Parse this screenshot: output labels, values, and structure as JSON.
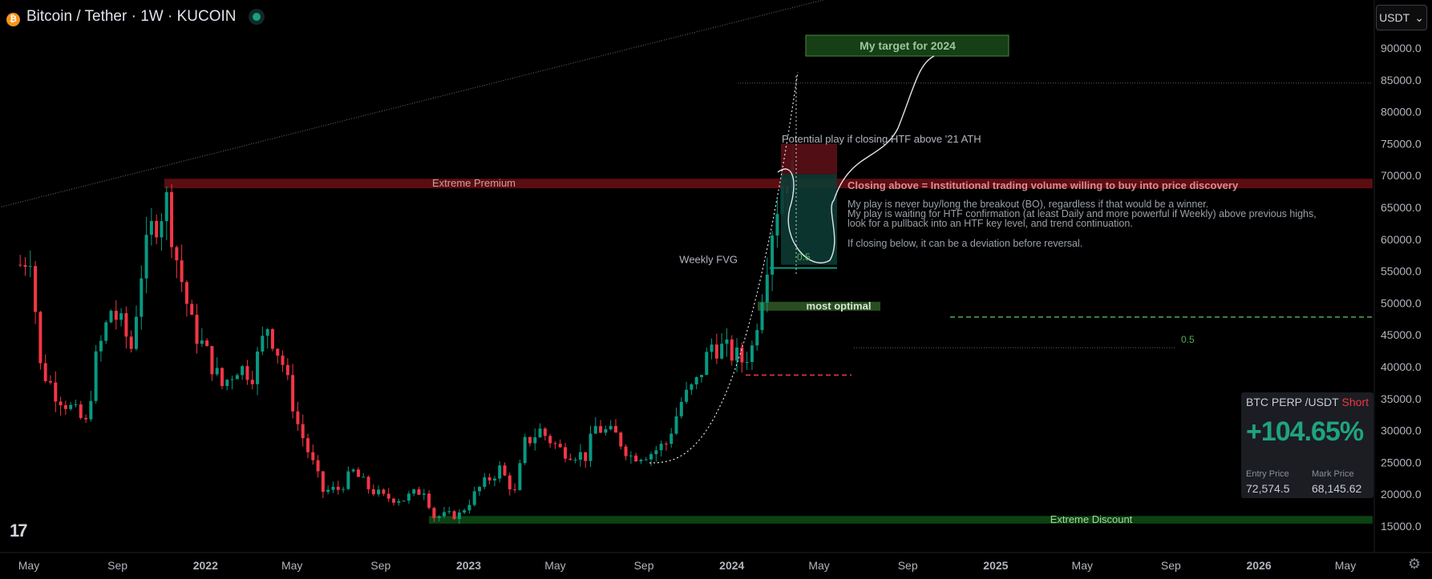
{
  "header": {
    "title": "Bitcoin / Tether · 1W · KUCOIN",
    "logo_letter": "₿"
  },
  "currency_selector": {
    "label": "USDT",
    "icon": "chevron-down-icon"
  },
  "colors": {
    "up": "#089981",
    "down": "#f23645",
    "background": "#000000",
    "accent": "#2962ff"
  },
  "position_card": {
    "symbol": "BTC PERP /USDT",
    "side": "Short",
    "pnl": "+104.65%",
    "entry_label": "Entry Price",
    "entry_value": "72,574.5",
    "mark_label": "Mark Price",
    "mark_value": "68,145.62"
  },
  "chart_data": {
    "type": "candlestick",
    "title": "Bitcoin / Tether · 1W · KUCOIN",
    "ylim": [
      12000,
      96000
    ],
    "y_ticks": [
      "90000.0",
      "85000.0",
      "80000.0",
      "75000.0",
      "70000.0",
      "65000.0",
      "60000.0",
      "55000.0",
      "50000.0",
      "45000.0",
      "40000.0",
      "35000.0",
      "30000.0",
      "25000.0",
      "20000.0",
      "15000.0"
    ],
    "x_ticks": [
      "May",
      "Sep",
      "2022",
      "May",
      "Sep",
      "2023",
      "May",
      "Sep",
      "2024",
      "May",
      "Sep",
      "2025",
      "May",
      "Sep",
      "2026",
      "May"
    ],
    "x_tick_dates": [
      "2021-05",
      "2021-09",
      "2022-01",
      "2022-05",
      "2022-09",
      "2023-01",
      "2023-05",
      "2023-09",
      "2024-01",
      "2024-05",
      "2024-09",
      "2025-01",
      "2025-05",
      "2025-09",
      "2026-01",
      "2026-05"
    ],
    "weekly_close_path": [
      [
        "2021-04-19",
        56000
      ],
      [
        "2021-05-03",
        58000
      ],
      [
        "2021-05-17",
        40000
      ],
      [
        "2021-06-07",
        36000
      ],
      [
        "2021-06-28",
        33500
      ],
      [
        "2021-07-19",
        31000
      ],
      [
        "2021-08-02",
        41000
      ],
      [
        "2021-08-23",
        49000
      ],
      [
        "2021-09-06",
        46500
      ],
      [
        "2021-09-20",
        43000
      ],
      [
        "2021-10-04",
        55000
      ],
      [
        "2021-10-18",
        61500
      ],
      [
        "2021-11-08",
        66000
      ],
      [
        "2021-11-22",
        57000
      ],
      [
        "2021-12-13",
        46500
      ],
      [
        "2022-01-03",
        42000
      ],
      [
        "2022-01-24",
        37000
      ],
      [
        "2022-02-14",
        40000
      ],
      [
        "2022-03-07",
        39000
      ],
      [
        "2022-03-28",
        46500
      ],
      [
        "2022-04-18",
        40500
      ],
      [
        "2022-05-09",
        31000
      ],
      [
        "2022-06-13",
        20500
      ],
      [
        "2022-07-04",
        20800
      ],
      [
        "2022-07-25",
        23500
      ],
      [
        "2022-08-15",
        21000
      ],
      [
        "2022-09-05",
        19500
      ],
      [
        "2022-10-03",
        19300
      ],
      [
        "2022-10-31",
        20800
      ],
      [
        "2022-11-14",
        16500
      ],
      [
        "2022-12-19",
        16800
      ],
      [
        "2023-01-16",
        21000
      ],
      [
        "2023-02-13",
        24000
      ],
      [
        "2023-03-06",
        20200
      ],
      [
        "2023-03-20",
        28000
      ],
      [
        "2023-04-10",
        30000
      ],
      [
        "2023-05-08",
        27000
      ],
      [
        "2023-06-12",
        26000
      ],
      [
        "2023-06-26",
        30500
      ],
      [
        "2023-07-24",
        29200
      ],
      [
        "2023-08-14",
        26000
      ],
      [
        "2023-09-11",
        26500
      ],
      [
        "2023-10-02",
        28000
      ],
      [
        "2023-10-23",
        34500
      ],
      [
        "2023-11-13",
        37500
      ],
      [
        "2023-12-04",
        43500
      ],
      [
        "2023-12-25",
        42500
      ],
      [
        "2024-01-15",
        41000
      ],
      [
        "2024-01-29",
        43000
      ],
      [
        "2024-02-12",
        52000
      ],
      [
        "2024-02-26",
        62000
      ],
      [
        "2024-03-11",
        69000
      ],
      [
        "2024-03-25",
        70000
      ]
    ],
    "zones": [
      {
        "label": "Extreme Premium",
        "y_low": 68000,
        "y_high": 69500,
        "color": "#f23645"
      },
      {
        "label": "Extreme Discount",
        "y_low": 15400,
        "y_high": 16600,
        "color": "#089981"
      },
      {
        "label": "most optimal",
        "y_low": 48800,
        "y_high": 50200,
        "color": "#4caf50"
      },
      {
        "label": "Weekly  FVG",
        "y_low": 55500,
        "y_high": 56200,
        "color": "#089981"
      }
    ],
    "annotations": [
      "My target for 2024",
      "Potential play if closing HTF above '21 ATH",
      "Closing above = Institutional trading volume willing to buy into price discovery",
      "My play is never buy/long the breakout (BO), regardless if that would be a winner.",
      "My play is waiting for HTF confirmation (at least Daily and more powerful if Weekly) above previous highs,",
      "look for a pullback into an HTF key level, and trend continuation.",
      "If closing below, it can be a deviation before reversal.",
      "0.5",
      "0.5"
    ],
    "levels": [
      {
        "y": 84500,
        "style": "dotted"
      },
      {
        "y": 47800,
        "style": "dashed",
        "color": "#4caf50"
      },
      {
        "y": 43000,
        "style": "dotted"
      },
      {
        "y": 38700,
        "style": "dashed",
        "color": "#f23645"
      }
    ],
    "trendline": {
      "from": [
        "2021-04-12",
        65000
      ],
      "to": [
        "2024-08-01",
        100000
      ]
    },
    "grid": false,
    "legend": "none"
  }
}
